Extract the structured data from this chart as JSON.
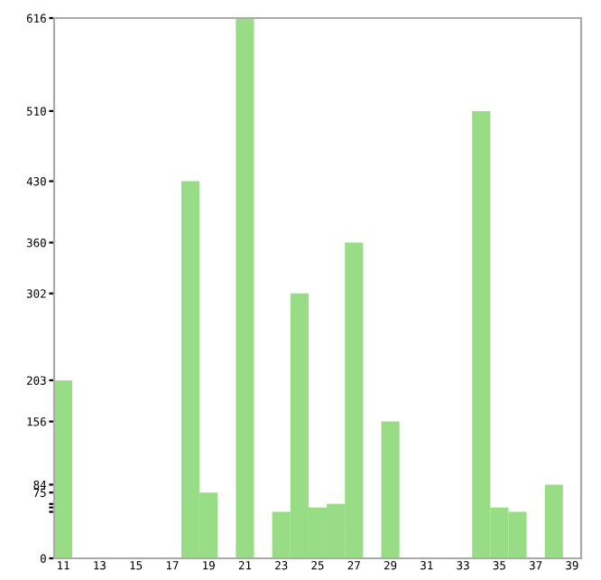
{
  "chart_data": {
    "type": "bar",
    "categories": [
      "11",
      null,
      "13",
      null,
      "15",
      null,
      "17",
      null,
      "19",
      null,
      "21",
      null,
      "23",
      null,
      "25",
      null,
      "27",
      null,
      "29",
      null,
      "31",
      null,
      "33",
      null,
      "35",
      null,
      "37",
      null,
      "39"
    ],
    "values": [
      203,
      0,
      0,
      0,
      0,
      0,
      0,
      430,
      75,
      0,
      616,
      0,
      53,
      302,
      58,
      62,
      360,
      0,
      156,
      0,
      0,
      0,
      0,
      510,
      58,
      53,
      0,
      84,
      0
    ],
    "color": "#98dc85",
    "ylim": [
      0,
      616
    ],
    "yticks": [
      0,
      {
        "value": 53,
        "label": null
      },
      {
        "value": 58,
        "label": null
      },
      {
        "value": 62,
        "label": null
      },
      75,
      84,
      156,
      203,
      302,
      360,
      430,
      510,
      616
    ],
    "grid": false,
    "legend": false
  }
}
